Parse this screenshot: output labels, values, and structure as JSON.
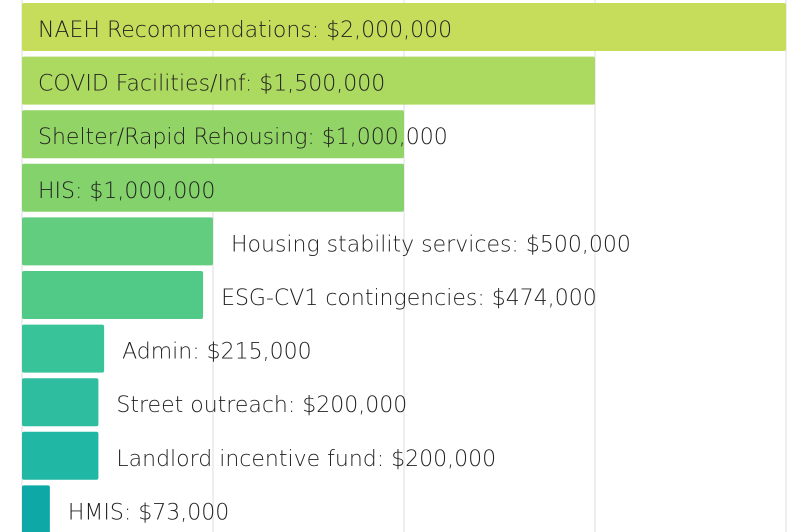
{
  "chart_data": {
    "type": "bar",
    "orientation": "horizontal",
    "categories": [
      "NAEH Recommendations: $2,000,000",
      "COVID Facilities/Inf: $1,500,000",
      "Shelter/Rapid Rehousing: $1,000,000",
      "HIS: $1,000,000",
      "Housing stability services: $500,000",
      "ESG-CV1 contingencies: $474,000",
      "Admin: $215,000",
      "Street outreach: $200,000",
      "Landlord incentive fund: $200,000",
      "HMIS: $73,000"
    ],
    "values": [
      2000000,
      1500000,
      1000000,
      1000000,
      500000,
      474000,
      215000,
      200000,
      200000,
      73000
    ],
    "colors": [
      "#c6dd5b",
      "#acd95f",
      "#92d566",
      "#83d26c",
      "#62cd7e",
      "#52ca87",
      "#39c398",
      "#2ebe9f",
      "#20b8a4",
      "#0ea8a6"
    ],
    "xlim": [
      0,
      2000000
    ],
    "xticks": [
      0,
      500000,
      1000000,
      1500000,
      2000000
    ],
    "grid": true
  }
}
